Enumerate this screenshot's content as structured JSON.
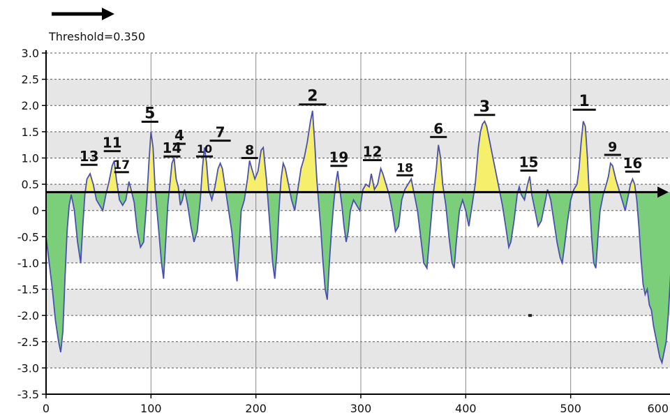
{
  "chart_data": {
    "type": "area",
    "title": "",
    "xlabel": "",
    "ylabel": "",
    "threshold_label": "Threshold=0.350",
    "threshold": 0.35,
    "xlim": [
      0,
      600
    ],
    "ylim": [
      -3.5,
      3.0
    ],
    "x_ticks": [
      0,
      100,
      200,
      300,
      400,
      500,
      600
    ],
    "y_ticks": [
      3.0,
      2.5,
      2.0,
      1.5,
      1.0,
      0.5,
      0,
      -0.5,
      -1.0,
      -1.5,
      -2.0,
      -2.5,
      -3.0,
      -3.5
    ],
    "y_tick_labels": [
      "3.0",
      "2.5",
      "2.0",
      "1.5",
      "1.0",
      "0.5",
      "0",
      "-0.5",
      "-1.0",
      "-1.5",
      "-2.0",
      "-2.5",
      "-3.0",
      "-3.5"
    ],
    "grid": true,
    "colors": {
      "line": "#4a4fb3",
      "above_fill": "#f5ef6b",
      "below_fill": "#7ccf7a",
      "band": "#e6e6e6",
      "grid": "#555555",
      "axis": "#000000"
    },
    "series": [
      {
        "points": [
          [
            0,
            -0.5
          ],
          [
            3,
            -1.0
          ],
          [
            6,
            -1.5
          ],
          [
            9,
            -2.1
          ],
          [
            12,
            -2.5
          ],
          [
            14,
            -2.7
          ],
          [
            16,
            -2.3
          ],
          [
            18,
            -1.3
          ],
          [
            20,
            -0.4
          ],
          [
            22,
            0.1
          ],
          [
            24,
            0.3
          ],
          [
            27,
            0.0
          ],
          [
            30,
            -0.6
          ],
          [
            33,
            -1.0
          ],
          [
            35,
            -0.3
          ],
          [
            37,
            0.3
          ],
          [
            39,
            0.6
          ],
          [
            42,
            0.7
          ],
          [
            45,
            0.5
          ],
          [
            48,
            0.2
          ],
          [
            51,
            0.1
          ],
          [
            54,
            0.0
          ],
          [
            57,
            0.3
          ],
          [
            60,
            0.55
          ],
          [
            63,
            0.85
          ],
          [
            65,
            0.95
          ],
          [
            67,
            0.6
          ],
          [
            70,
            0.2
          ],
          [
            73,
            0.1
          ],
          [
            76,
            0.2
          ],
          [
            79,
            0.55
          ],
          [
            81,
            0.4
          ],
          [
            84,
            0.15
          ],
          [
            87,
            -0.4
          ],
          [
            90,
            -0.7
          ],
          [
            93,
            -0.6
          ],
          [
            96,
            0.2
          ],
          [
            98,
            0.9
          ],
          [
            100,
            1.5
          ],
          [
            102,
            1.2
          ],
          [
            104,
            0.4
          ],
          [
            107,
            -0.3
          ],
          [
            110,
            -1.0
          ],
          [
            112,
            -1.3
          ],
          [
            114,
            -0.6
          ],
          [
            116,
            0.1
          ],
          [
            118,
            0.5
          ],
          [
            120,
            0.9
          ],
          [
            122,
            1.0
          ],
          [
            124,
            0.6
          ],
          [
            126,
            0.45
          ],
          [
            128,
            0.1
          ],
          [
            130,
            0.2
          ],
          [
            132,
            0.4
          ],
          [
            135,
            0.1
          ],
          [
            138,
            -0.3
          ],
          [
            141,
            -0.6
          ],
          [
            144,
            -0.4
          ],
          [
            147,
            0.2
          ],
          [
            149,
            0.8
          ],
          [
            151,
            1.2
          ],
          [
            153,
            0.9
          ],
          [
            155,
            0.4
          ],
          [
            158,
            0.2
          ],
          [
            161,
            0.45
          ],
          [
            164,
            0.8
          ],
          [
            166,
            0.9
          ],
          [
            168,
            0.8
          ],
          [
            171,
            0.4
          ],
          [
            174,
            0.0
          ],
          [
            177,
            -0.4
          ],
          [
            180,
            -1.0
          ],
          [
            182,
            -1.35
          ],
          [
            184,
            -0.7
          ],
          [
            186,
            0.0
          ],
          [
            189,
            0.2
          ],
          [
            192,
            0.6
          ],
          [
            194,
            0.95
          ],
          [
            196,
            0.8
          ],
          [
            199,
            0.6
          ],
          [
            202,
            0.75
          ],
          [
            205,
            1.15
          ],
          [
            207,
            1.2
          ],
          [
            210,
            0.6
          ],
          [
            213,
            -0.2
          ],
          [
            216,
            -1.0
          ],
          [
            218,
            -1.3
          ],
          [
            220,
            -0.8
          ],
          [
            222,
            0.0
          ],
          [
            224,
            0.6
          ],
          [
            226,
            0.9
          ],
          [
            228,
            0.8
          ],
          [
            231,
            0.5
          ],
          [
            234,
            0.2
          ],
          [
            237,
            0.0
          ],
          [
            240,
            0.4
          ],
          [
            243,
            0.8
          ],
          [
            246,
            1.0
          ],
          [
            249,
            1.3
          ],
          [
            252,
            1.7
          ],
          [
            254,
            1.9
          ],
          [
            256,
            1.3
          ],
          [
            258,
            0.6
          ],
          [
            260,
            0.1
          ],
          [
            262,
            -0.4
          ],
          [
            264,
            -1.0
          ],
          [
            266,
            -1.5
          ],
          [
            268,
            -1.7
          ],
          [
            270,
            -1.0
          ],
          [
            272,
            -0.4
          ],
          [
            274,
            0.1
          ],
          [
            276,
            0.5
          ],
          [
            278,
            0.75
          ],
          [
            280,
            0.4
          ],
          [
            282,
            0.1
          ],
          [
            284,
            -0.3
          ],
          [
            286,
            -0.6
          ],
          [
            288,
            -0.4
          ],
          [
            290,
            0.0
          ],
          [
            293,
            0.2
          ],
          [
            296,
            0.1
          ],
          [
            299,
            0.0
          ],
          [
            302,
            0.4
          ],
          [
            305,
            0.5
          ],
          [
            308,
            0.45
          ],
          [
            310,
            0.7
          ],
          [
            313,
            0.4
          ],
          [
            316,
            0.5
          ],
          [
            319,
            0.8
          ],
          [
            321,
            0.7
          ],
          [
            324,
            0.5
          ],
          [
            327,
            0.3
          ],
          [
            330,
            0.0
          ],
          [
            333,
            -0.4
          ],
          [
            336,
            -0.3
          ],
          [
            339,
            0.2
          ],
          [
            342,
            0.4
          ],
          [
            345,
            0.5
          ],
          [
            348,
            0.6
          ],
          [
            351,
            0.3
          ],
          [
            354,
            0.0
          ],
          [
            357,
            -0.5
          ],
          [
            360,
            -1.0
          ],
          [
            363,
            -1.1
          ],
          [
            366,
            -0.4
          ],
          [
            369,
            0.3
          ],
          [
            372,
            0.8
          ],
          [
            374,
            1.25
          ],
          [
            376,
            1.0
          ],
          [
            378,
            0.5
          ],
          [
            381,
            0.1
          ],
          [
            384,
            -0.5
          ],
          [
            387,
            -1.0
          ],
          [
            389,
            -1.1
          ],
          [
            391,
            -0.6
          ],
          [
            394,
            0.0
          ],
          [
            397,
            0.2
          ],
          [
            400,
            0.0
          ],
          [
            403,
            -0.3
          ],
          [
            406,
            0.1
          ],
          [
            409,
            0.5
          ],
          [
            412,
            1.2
          ],
          [
            414,
            1.5
          ],
          [
            416,
            1.65
          ],
          [
            418,
            1.7
          ],
          [
            420,
            1.6
          ],
          [
            423,
            1.3
          ],
          [
            426,
            1.0
          ],
          [
            429,
            0.7
          ],
          [
            432,
            0.4
          ],
          [
            435,
            0.1
          ],
          [
            438,
            -0.3
          ],
          [
            441,
            -0.7
          ],
          [
            443,
            -0.6
          ],
          [
            446,
            -0.2
          ],
          [
            449,
            0.3
          ],
          [
            451,
            0.45
          ],
          [
            453,
            0.3
          ],
          [
            456,
            0.2
          ],
          [
            459,
            0.5
          ],
          [
            461,
            0.65
          ],
          [
            463,
            0.3
          ],
          [
            466,
            0.0
          ],
          [
            469,
            -0.3
          ],
          [
            472,
            -0.2
          ],
          [
            475,
            0.1
          ],
          [
            478,
            0.4
          ],
          [
            481,
            0.2
          ],
          [
            484,
            -0.2
          ],
          [
            487,
            -0.6
          ],
          [
            490,
            -0.9
          ],
          [
            492,
            -1.0
          ],
          [
            494,
            -0.7
          ],
          [
            497,
            -0.2
          ],
          [
            500,
            0.2
          ],
          [
            503,
            0.4
          ],
          [
            506,
            0.5
          ],
          [
            508,
            0.8
          ],
          [
            510,
            1.3
          ],
          [
            512,
            1.7
          ],
          [
            514,
            1.6
          ],
          [
            516,
            1.0
          ],
          [
            518,
            0.2
          ],
          [
            520,
            -0.5
          ],
          [
            522,
            -1.0
          ],
          [
            524,
            -1.1
          ],
          [
            526,
            -0.5
          ],
          [
            528,
            0.0
          ],
          [
            531,
            0.3
          ],
          [
            534,
            0.5
          ],
          [
            536,
            0.65
          ],
          [
            538,
            0.9
          ],
          [
            540,
            0.85
          ],
          [
            543,
            0.6
          ],
          [
            546,
            0.4
          ],
          [
            549,
            0.2
          ],
          [
            552,
            0.0
          ],
          [
            555,
            0.3
          ],
          [
            557,
            0.5
          ],
          [
            559,
            0.6
          ],
          [
            561,
            0.5
          ],
          [
            563,
            0.2
          ],
          [
            565,
            -0.3
          ],
          [
            567,
            -0.9
          ],
          [
            569,
            -1.4
          ],
          [
            571,
            -1.6
          ],
          [
            573,
            -1.5
          ],
          [
            575,
            -1.8
          ],
          [
            577,
            -1.9
          ],
          [
            579,
            -2.2
          ],
          [
            581,
            -2.4
          ],
          [
            583,
            -2.6
          ],
          [
            585,
            -2.8
          ],
          [
            587,
            -2.9
          ],
          [
            589,
            -2.7
          ],
          [
            591,
            -2.5
          ],
          [
            593,
            -2.0
          ],
          [
            595,
            -1.3
          ],
          [
            597,
            -0.6
          ],
          [
            599,
            -0.3
          ],
          [
            601,
            -0.4
          ],
          [
            603,
            -0.8
          ],
          [
            605,
            -1.3
          ],
          [
            607,
            -1.7
          ],
          [
            609,
            -1.9
          ],
          [
            610,
            -2.1
          ]
        ]
      }
    ],
    "peaks": [
      {
        "label": "1",
        "x": 513,
        "y": 1.92,
        "w": 22,
        "size": 22
      },
      {
        "label": "2",
        "x": 254,
        "y": 2.02,
        "w": 26,
        "size": 22
      },
      {
        "label": "3",
        "x": 418,
        "y": 1.82,
        "w": 20,
        "size": 22
      },
      {
        "label": "4",
        "x": 127,
        "y": 1.27,
        "w": 12,
        "size": 20
      },
      {
        "label": "5",
        "x": 99,
        "y": 1.69,
        "w": 16,
        "size": 22
      },
      {
        "label": "6",
        "x": 374,
        "y": 1.4,
        "w": 16,
        "size": 20
      },
      {
        "label": "7",
        "x": 166,
        "y": 1.33,
        "w": 20,
        "size": 20
      },
      {
        "label": "8",
        "x": 194,
        "y": 1.0,
        "w": 16,
        "size": 19
      },
      {
        "label": "9",
        "x": 540,
        "y": 1.06,
        "w": 16,
        "size": 19
      },
      {
        "label": "10",
        "x": 151,
        "y": 1.03,
        "w": 16,
        "size": 16
      },
      {
        "label": "11",
        "x": 63,
        "y": 1.13,
        "w": 16,
        "size": 20
      },
      {
        "label": "12",
        "x": 311,
        "y": 0.96,
        "w": 18,
        "size": 20
      },
      {
        "label": "13",
        "x": 41,
        "y": 0.87,
        "w": 16,
        "size": 20
      },
      {
        "label": "14",
        "x": 120,
        "y": 1.03,
        "w": 16,
        "size": 20
      },
      {
        "label": "15",
        "x": 460,
        "y": 0.76,
        "w": 16,
        "size": 20
      },
      {
        "label": "16",
        "x": 559,
        "y": 0.74,
        "w": 14,
        "size": 20
      },
      {
        "label": "17",
        "x": 72,
        "y": 0.73,
        "w": 14,
        "size": 17
      },
      {
        "label": "18",
        "x": 342,
        "y": 0.67,
        "w": 16,
        "size": 17
      },
      {
        "label": "19",
        "x": 279,
        "y": 0.85,
        "w": 16,
        "size": 20
      }
    ]
  }
}
